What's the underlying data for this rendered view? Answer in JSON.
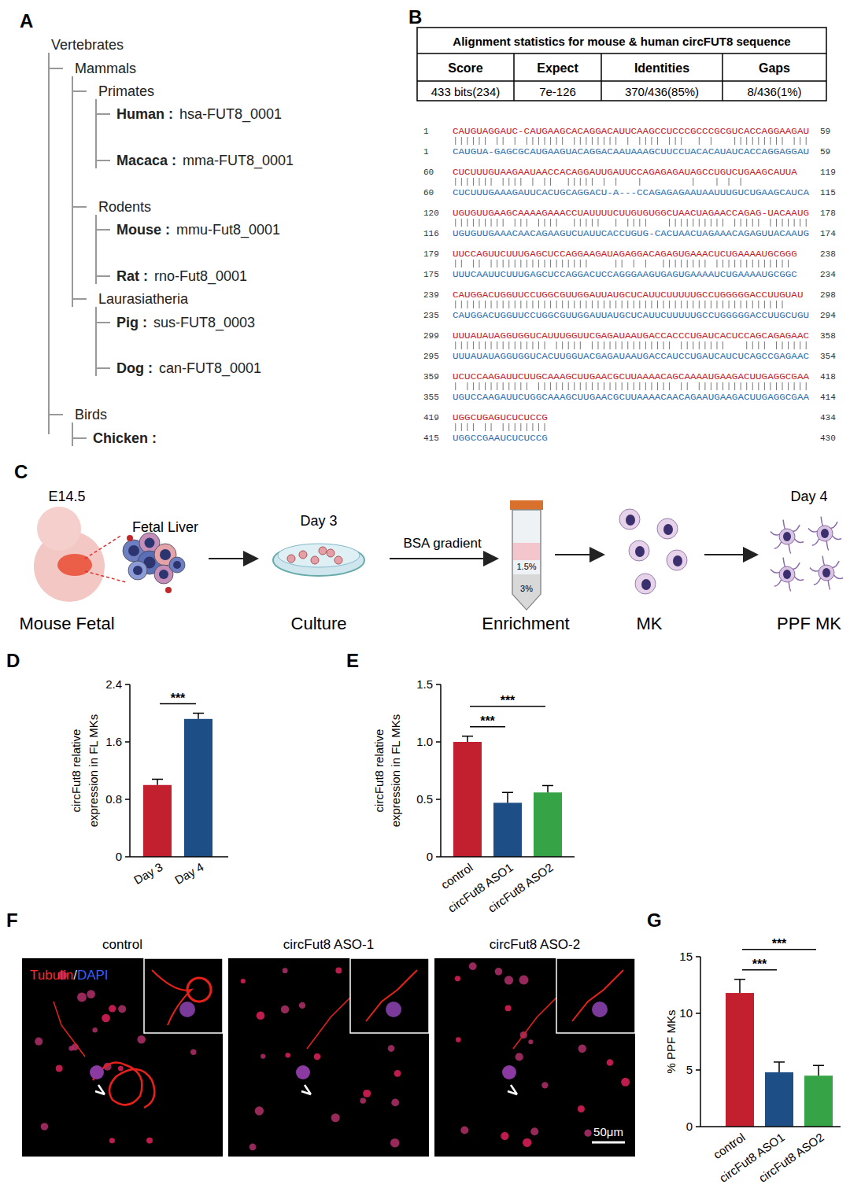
{
  "panel_labels": [
    "A",
    "B",
    "C",
    "D",
    "E",
    "F",
    "G"
  ],
  "tree": {
    "label": "Vertebrates",
    "children": [
      {
        "label": "Mammals",
        "children": [
          {
            "label": "Primates",
            "children": [
              {
                "species": "Human :",
                "id": "hsa-FUT8_0001"
              },
              {
                "species": "Macaca :",
                "id": "mma-FUT8_0001"
              }
            ]
          },
          {
            "label": "Rodents",
            "children": [
              {
                "species": "Mouse :",
                "id": "mmu-Fut8_0001"
              },
              {
                "species": "Rat :",
                "id": "rno-Fut8_0001"
              }
            ]
          },
          {
            "label": "Laurasiatheria",
            "children": [
              {
                "species": "Pig :",
                "id": "sus-FUT8_0003"
              },
              {
                "species": "Dog :",
                "id": "can-FUT8_0001"
              }
            ]
          }
        ]
      },
      {
        "label": "Birds",
        "children": [
          {
            "species": "Chicken :"
          }
        ]
      }
    ]
  },
  "alignment": {
    "title": "Alignment statistics for mouse & human circFUT8 sequence",
    "columns": [
      "Score",
      "Expect",
      "Identities",
      "Gaps"
    ],
    "row": [
      "433 bits(234)",
      "7e-126",
      "370/436(85%)",
      "8/436(1%)"
    ],
    "blocks": [
      {
        "human": {
          "start": 1,
          "seq": "CAUGUAGGAUC-CAUGAAGCACAGGACAUUCAAGCCUCCCGCCCGCGUCACCAGGAAGAU",
          "end": 59
        },
        "mouse": {
          "start": 1,
          "seq": "CAUGUA-GAGCGCAUGAAGUACAGGACAAUAAAGCUUCCUACACAUAUCACCAGGAGGAU",
          "end": 59
        }
      },
      {
        "human": {
          "start": 60,
          "seq": "CUCUUUGUAAGAAUAACCACAGGAUUGAUUCCAGAGAGAUAGCCUGUCUGAAGCAUUA",
          "end": 119
        },
        "mouse": {
          "start": 60,
          "seq": "CUCUUUGAAAGAUUCACUGCAGGACU-A---CCAGAGAGAAUAAUUUGUCUGAAGCAUCA",
          "end": 115
        }
      },
      {
        "human": {
          "start": 120,
          "seq": "UGUGUUGAAGCAAAAGAAACCUAUUUUCUUGUGUGGCUAACUAGAACCAGAG-UACAAUG",
          "end": 178
        },
        "mouse": {
          "start": 116,
          "seq": "UGUGUUGAAACAACAGAAGUCUAUUCACCUGUG-CACUAACUAGAAACAGAGUUACAAUG",
          "end": 174
        }
      },
      {
        "human": {
          "start": 179,
          "seq": "UUCCAGUUCUUUGAGCUCCAGGAAGAUAGAGGACAGAGUGAAACUCUGAAAAUGCGGG",
          "end": 238
        },
        "mouse": {
          "start": 175,
          "seq": "UUUCAAUUCUUUGAGCUCCAGGACUCCAGGGAAGUGAGUGAAAAUCUGAAAAUGCGGC",
          "end": 234
        }
      },
      {
        "human": {
          "start": 239,
          "seq": "CAUGGACUGGUUCCUGGCGUUGGAUUAUGCUCAUUCUUUUUGCCUGGGGGACCUUGUAU",
          "end": 298
        },
        "mouse": {
          "start": 235,
          "seq": "CAUGGACUGGUUCCUGGCGUUGGAUUAUGCUCAUUCUUUUUGCCUGGGGGACCUUGCUGU",
          "end": 294
        }
      },
      {
        "human": {
          "start": 299,
          "seq": "UUUAUAUAGGUGGUCAUUUGGUUCGAGAUAAUGACCACCCUGAUCACUCCAGCAGAGAAC",
          "end": 358
        },
        "mouse": {
          "start": 295,
          "seq": "UUUAUAUAGGUGGUCACUUGGUACGAGAUAAUGACCAUCCUGAUCAUCUCAGCCGAGAAC",
          "end": 354
        }
      },
      {
        "human": {
          "start": 359,
          "seq": "UCUCCAAGAUUCUUGCAAAGCUUGAACGCUUAAAACAGCAAAAUGAAGACUUGAGGCGAA",
          "end": 418
        },
        "mouse": {
          "start": 355,
          "seq": "UGUCCAAGAUUCUGGCAAAGCUUGAACGCUUAAAACAACAGAAUGAAGACUUGAGGCGAA",
          "end": 414
        }
      },
      {
        "human": {
          "start": 419,
          "seq": "UGGCUGAGUCUCUCCG",
          "end": 434
        },
        "mouse": {
          "start": 415,
          "seq": "UGGCCGAAUCUCUCCG",
          "end": 430
        }
      }
    ]
  },
  "schematic": {
    "stage": "E14.5",
    "organ": "Fetal Liver",
    "steps": [
      {
        "label": "Mouse Fetal"
      },
      {
        "label": "Culture",
        "time": "Day 3"
      },
      {
        "label": "Enrichment",
        "arrow_label": "BSA gradient",
        "layers": [
          "1.5%",
          "3%"
        ]
      },
      {
        "label": "MK"
      },
      {
        "label": "PPF MK",
        "time": "Day 4"
      }
    ]
  },
  "chart_data": [
    {
      "type": "bar",
      "categories": [
        "Day 3",
        "Day 4"
      ],
      "values": [
        1.0,
        1.92
      ],
      "errors": [
        0.08,
        0.08
      ],
      "colors": [
        "#c3202f",
        "#1d4f86"
      ],
      "y_label": [
        "circFut8 relative",
        "expression in FL MKs"
      ],
      "ylim": [
        0,
        2.4
      ],
      "yticks": [
        0,
        0.8,
        1.6,
        2.4
      ],
      "annotations": [
        {
          "text": "***",
          "from": 0,
          "to": 1
        }
      ]
    },
    {
      "type": "bar",
      "categories": [
        "control",
        "circFut8 ASO1",
        "circFut8 ASO2"
      ],
      "values": [
        1.0,
        0.47,
        0.56
      ],
      "errors": [
        0.05,
        0.09,
        0.06
      ],
      "colors": [
        "#c3202f",
        "#1d4f86",
        "#36a446"
      ],
      "y_label": [
        "circFut8 relative",
        "expression in FL MKs"
      ],
      "ylim": [
        0,
        1.5
      ],
      "yticks": [
        0,
        0.5,
        {
          "value": 1,
          "label": "1.0"
        },
        1.5
      ],
      "annotations": [
        {
          "text": "***",
          "from": 0,
          "to": 1
        },
        {
          "text": "***",
          "from": 0,
          "to": 2
        }
      ]
    },
    {
      "type": "bar",
      "categories": [
        "control",
        "circFut8 ASO1",
        "circFut8 ASO2"
      ],
      "values": [
        11.8,
        4.8,
        4.5
      ],
      "errors": [
        1.2,
        0.9,
        0.9
      ],
      "colors": [
        "#c3202f",
        "#1d4f86",
        "#36a446"
      ],
      "y_label": [
        "% PPF MKs"
      ],
      "ylim": [
        0,
        15
      ],
      "yticks": [
        0,
        5,
        10,
        15
      ],
      "annotations": [
        {
          "text": "***",
          "from": 0,
          "to": 1
        },
        {
          "text": "***",
          "from": 0,
          "to": 2
        }
      ]
    }
  ],
  "images": {
    "titles": [
      "control",
      "circFut8 ASO-1",
      "circFut8 ASO-2"
    ],
    "stains": [
      "Tubulin",
      "DAPI"
    ],
    "stain_colors": [
      "#ff2a2a",
      "#3a5cff"
    ],
    "stain_separator": "/",
    "scale_bar": "50μm"
  }
}
